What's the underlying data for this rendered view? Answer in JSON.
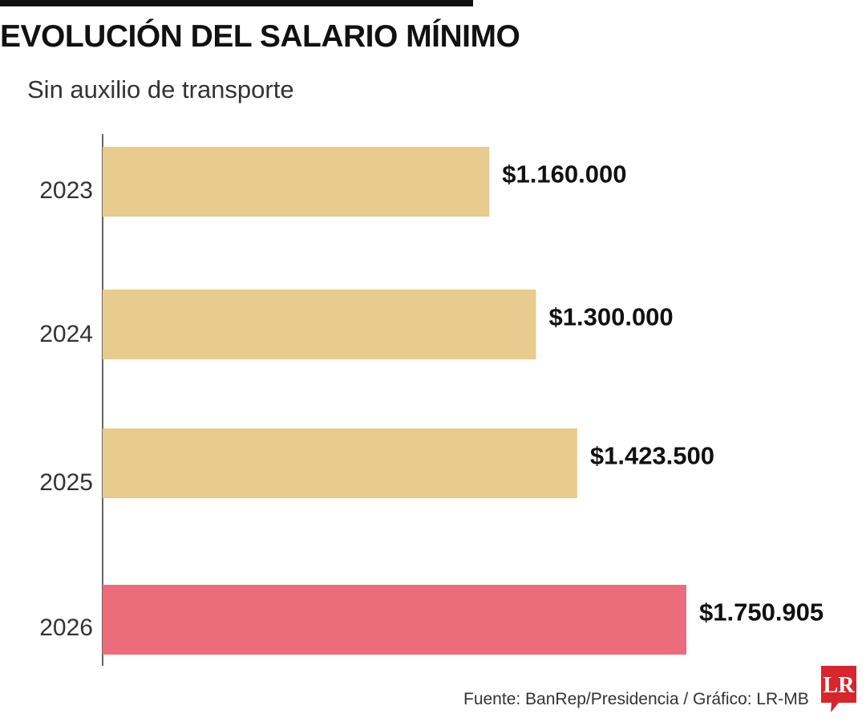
{
  "header": {
    "title": "EVOLUCIÓN DEL SALARIO MÍNIMO",
    "subtitle": "Sin auxilio de transporte"
  },
  "footer": {
    "source": "Fuente: BanRep/Presidencia / Gráfico: LR-MB",
    "logo_text": "LR"
  },
  "colors": {
    "bar_default": "#e8cb8f",
    "bar_highlight": "#eb6c7a",
    "logo_red": "#d7262e",
    "axis": "#333333"
  },
  "chart_data": {
    "type": "bar",
    "orientation": "horizontal",
    "categories": [
      "2023",
      "2024",
      "2025",
      "2026"
    ],
    "values": [
      1160000,
      1300000,
      1423500,
      1750905
    ],
    "value_labels": [
      "$1.160.000",
      "$1.300.000",
      "$1.423.500",
      "$1.750.905"
    ],
    "highlight_index": 3,
    "title": "EVOLUCIÓN DEL SALARIO MÍNIMO",
    "subtitle": "Sin auxilio de transporte",
    "xlim": [
      0,
      1750905
    ],
    "grid": false,
    "legend": "none"
  }
}
